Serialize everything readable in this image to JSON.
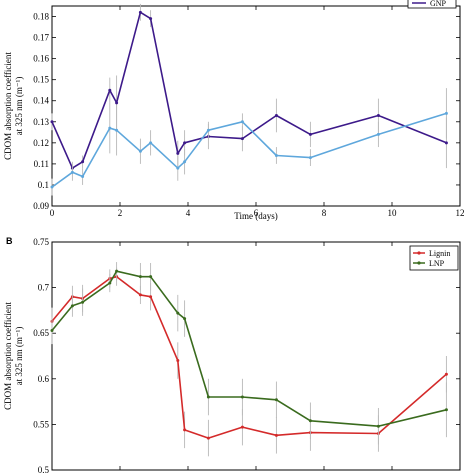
{
  "chart_data": [
    {
      "type": "line",
      "panel_letter": "",
      "xlabel": "Time (days)",
      "ylabel_line1": "CDOM absorption coefficient",
      "ylabel_line2": "at 325 nm (m⁻¹)",
      "xlim": [
        0,
        12
      ],
      "ylim": [
        0.09,
        0.185
      ],
      "xticks": [
        0,
        2,
        4,
        6,
        8,
        10,
        12
      ],
      "yticks": [
        0.09,
        0.1,
        0.11,
        0.12,
        0.13,
        0.14,
        0.15,
        0.16,
        0.17,
        0.18
      ],
      "xtick_labels": [
        "0",
        "2",
        "4",
        "6",
        "8",
        "10",
        "12"
      ],
      "ytick_labels": [
        "0.09",
        "0.1",
        "0.11",
        "0.12",
        "0.13",
        "0.14",
        "0.15",
        "0.16",
        "0.17",
        "0.18"
      ],
      "legend_position": "top-right",
      "legend_entries": [
        "GNP"
      ],
      "series": [
        {
          "name": "GNP",
          "color": "#3d1a8a",
          "x": [
            0,
            0.6,
            0.9,
            1.7,
            1.9,
            2.6,
            2.9,
            3.7,
            3.9,
            4.6,
            5.6,
            6.6,
            7.6,
            9.6,
            11.6
          ],
          "y": [
            0.13,
            0.108,
            0.111,
            0.145,
            0.139,
            0.182,
            0.179,
            0.115,
            0.12,
            0.123,
            0.122,
            0.133,
            0.124,
            0.133,
            0.12
          ],
          "err": [
            0.004,
            0.003,
            0.003,
            0.006,
            0.013,
            0.004,
            0.004,
            0.006,
            0.006,
            0.006,
            0.006,
            0.008,
            0.006,
            0.008,
            0.012
          ]
        },
        {
          "name": "",
          "color": "#5ea7dc",
          "x": [
            0,
            0.6,
            0.9,
            1.7,
            1.9,
            2.6,
            2.9,
            3.7,
            3.9,
            4.6,
            5.6,
            6.6,
            7.6,
            9.6,
            11.6
          ],
          "y": [
            0.099,
            0.106,
            0.104,
            0.127,
            0.126,
            0.116,
            0.12,
            0.108,
            0.111,
            0.126,
            0.13,
            0.114,
            0.113,
            0.124,
            0.134
          ],
          "err": [
            0.004,
            0.004,
            0.004,
            0.012,
            0.012,
            0.006,
            0.006,
            0.006,
            0.006,
            0.004,
            0.004,
            0.004,
            0.004,
            0.006,
            0.012
          ]
        }
      ]
    },
    {
      "type": "line",
      "panel_letter": "B",
      "xlabel": "",
      "ylabel_line1": "CDOM absorption coefficient",
      "ylabel_line2": "at 325 nm (m⁻¹)",
      "xlim": [
        0,
        12
      ],
      "ylim": [
        0.5,
        0.75
      ],
      "yticks": [
        0.5,
        0.55,
        0.6,
        0.65,
        0.7,
        0.75
      ],
      "ytick_labels": [
        "0.5",
        "0.55",
        "0.6",
        "0.65",
        "0.7",
        "0.75"
      ],
      "legend_position": "top-right",
      "legend_entries": [
        "Lignin",
        "LNP"
      ],
      "series": [
        {
          "name": "Lignin",
          "color": "#d42a2a",
          "x": [
            0,
            0.6,
            0.9,
            1.7,
            1.9,
            2.6,
            2.9,
            3.7,
            3.9,
            4.6,
            5.6,
            6.6,
            7.6,
            9.6,
            11.6
          ],
          "y": [
            0.663,
            0.69,
            0.688,
            0.71,
            0.712,
            0.692,
            0.69,
            0.62,
            0.544,
            0.535,
            0.547,
            0.538,
            0.541,
            0.54,
            0.605
          ],
          "err": [
            0.015,
            0.012,
            0.015,
            0.01,
            0.01,
            0.01,
            0.015,
            0.02,
            0.02,
            0.02,
            0.02,
            0.02,
            0.02,
            0.02,
            0.02
          ]
        },
        {
          "name": "LNP",
          "color": "#3a6b1e",
          "x": [
            0,
            0.6,
            0.9,
            1.7,
            1.9,
            2.6,
            2.9,
            3.7,
            3.9,
            4.6,
            5.6,
            6.6,
            7.6,
            9.6,
            11.6
          ],
          "y": [
            0.653,
            0.68,
            0.684,
            0.705,
            0.718,
            0.712,
            0.712,
            0.672,
            0.666,
            0.58,
            0.58,
            0.577,
            0.554,
            0.548,
            0.566
          ],
          "err": [
            0.015,
            0.012,
            0.015,
            0.01,
            0.01,
            0.015,
            0.015,
            0.02,
            0.02,
            0.02,
            0.02,
            0.02,
            0.02,
            0.02,
            0.03
          ]
        }
      ]
    }
  ]
}
